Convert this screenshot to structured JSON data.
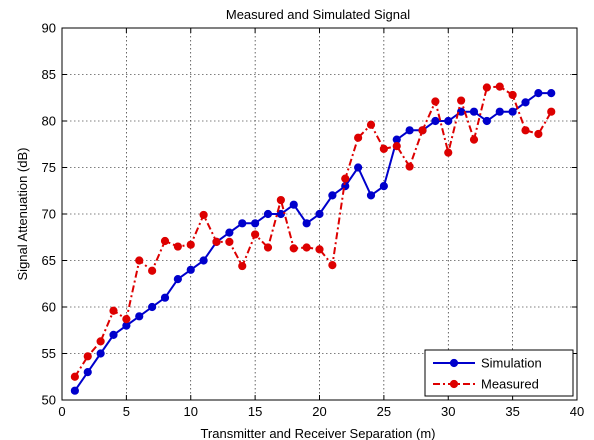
{
  "chart_data": {
    "type": "line",
    "title": "Measured and Simulated Signal",
    "xlabel": "Transmitter and Receiver Separation (m)",
    "ylabel": "Signal Attenuation (dB)",
    "xlim": [
      0,
      40
    ],
    "ylim": [
      50,
      90
    ],
    "xticks": [
      0,
      5,
      10,
      15,
      20,
      25,
      30,
      35,
      40
    ],
    "yticks": [
      50,
      55,
      60,
      65,
      70,
      75,
      80,
      85,
      90
    ],
    "grid": true,
    "legend_position": "bottom-right",
    "x": [
      1,
      2,
      3,
      4,
      5,
      6,
      7,
      8,
      9,
      10,
      11,
      12,
      13,
      14,
      15,
      16,
      17,
      18,
      19,
      20,
      21,
      22,
      23,
      24,
      25,
      26,
      27,
      28,
      29,
      30,
      31,
      32,
      33,
      34,
      35,
      36,
      37,
      38
    ],
    "series": [
      {
        "name": "Simulation",
        "color": "#0000CC",
        "line_style": "solid",
        "marker": "circle",
        "values": [
          51,
          53,
          55,
          57,
          58,
          59,
          60,
          61,
          63,
          64,
          65,
          67,
          68,
          69,
          69,
          70,
          70,
          71,
          69,
          70,
          72,
          73,
          75,
          72,
          73,
          78,
          79,
          79,
          80,
          80,
          81,
          81,
          80,
          81,
          81,
          82,
          83,
          83
        ]
      },
      {
        "name": "Measured",
        "color": "#DD0000",
        "line_style": "dash-dot",
        "marker": "circle",
        "values": [
          52.5,
          54.7,
          56.3,
          59.6,
          58.7,
          65,
          63.9,
          67.1,
          66.5,
          66.7,
          69.9,
          67,
          67,
          64.4,
          67.8,
          66.4,
          71.5,
          66.3,
          66.4,
          66.2,
          64.5,
          73.8,
          78.2,
          79.6,
          77,
          77.3,
          75.1,
          79,
          82.1,
          76.6,
          82.2,
          78,
          83.6,
          83.7,
          82.8,
          79,
          78.6,
          81
        ]
      }
    ]
  }
}
